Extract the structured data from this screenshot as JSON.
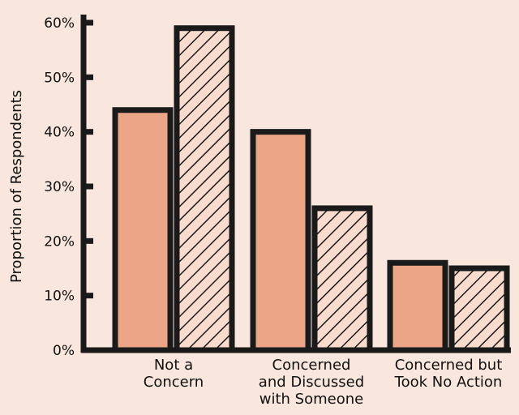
{
  "colors": {
    "background": "#f9e6dc",
    "bar_fill": "#eda587",
    "hatch_fill": "#f9dccd",
    "stroke": "#1a1a1a"
  },
  "chart_data": {
    "type": "bar",
    "ylabel": "Proportion of Respondents",
    "ylim": [
      0,
      60
    ],
    "yticks": [
      0,
      10,
      20,
      30,
      40,
      50,
      60
    ],
    "ytick_labels": [
      "0%",
      "10%",
      "20%",
      "30%",
      "40%",
      "50%",
      "60%"
    ],
    "categories": [
      [
        "Not a",
        "Concern"
      ],
      [
        "Concerned",
        "and Discussed",
        "with Someone"
      ],
      [
        "Concerned but",
        "Took No Action"
      ]
    ],
    "series": [
      {
        "style": "solid",
        "values": [
          44,
          40,
          16
        ]
      },
      {
        "style": "hatched",
        "values": [
          59,
          26,
          15
        ]
      }
    ],
    "legend": false,
    "grid": false
  }
}
